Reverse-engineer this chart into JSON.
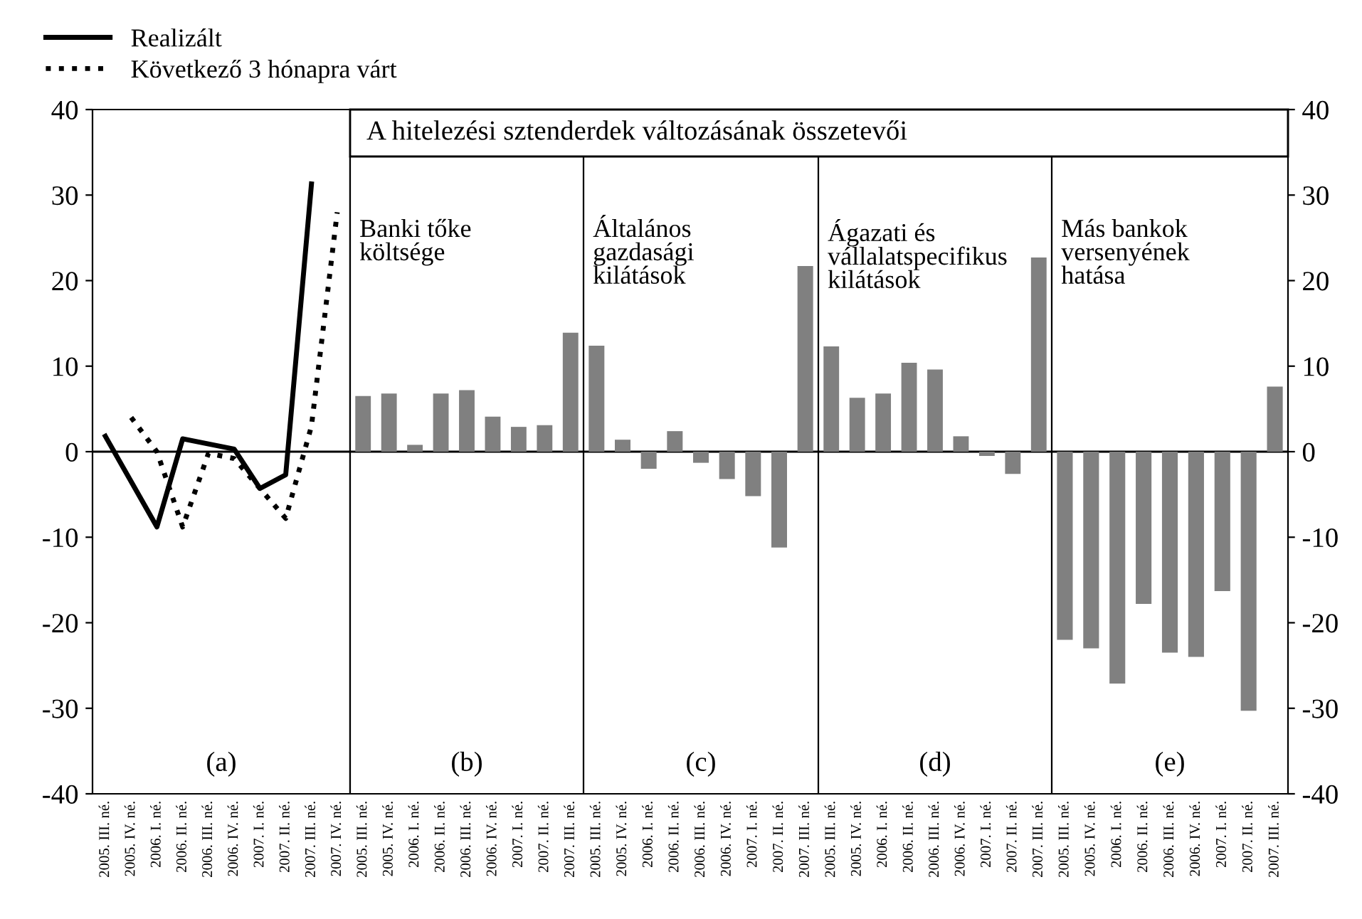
{
  "chart_data": [
    {
      "type": "line",
      "categories": [
        "2005. III. né.",
        "2005. IV. né.",
        "2006. I. né.",
        "2006. II. né.",
        "2006. III. né.",
        "2006. IV. né.",
        "2007. I. né.",
        "2007. II. né.",
        "2007. III. né.",
        "2007. IV. né."
      ],
      "series": [
        {
          "name": "Realizált",
          "color": "#000000",
          "line_style": "solid",
          "values": [
            1.8,
            -3.5,
            -8.8,
            1.5,
            0.9,
            0.3,
            -4.3,
            -2.7,
            31.3,
            null
          ]
        },
        {
          "name": "Következő 3 hónapra várt",
          "color": "#000000",
          "line_style": "dotted",
          "values": [
            null,
            4.0,
            0.0,
            -8.8,
            -0.2,
            -0.8,
            -4.3,
            -7.8,
            3.0,
            28.0
          ]
        }
      ],
      "ylim": [
        -40,
        40
      ],
      "yticks": [
        -40,
        -30,
        -20,
        -10,
        0,
        10,
        20,
        30,
        40
      ],
      "legend": "top",
      "annotations": [
        "(a)"
      ]
    },
    {
      "type": "bar",
      "title": "Banki tőke\nköltsége",
      "categories": [
        "2005. III. né.",
        "2005. IV. né.",
        "2006. I. né.",
        "2006. II. né.",
        "2006. III. né.",
        "2006. IV. né.",
        "2007. I. né.",
        "2007. II. né.",
        "2007. III. né."
      ],
      "series": [
        {
          "color": "#808080",
          "values": [
            6.5,
            6.8,
            0.8,
            6.8,
            7.2,
            4.1,
            2.9,
            3.1,
            13.9
          ]
        }
      ],
      "ylim": [
        -40,
        40
      ],
      "tick_labels": "x",
      "annotations": [
        "A hitelezési sztenderdek változásának összetevői",
        "(b)"
      ]
    },
    {
      "type": "bar",
      "title": "Általános\ngazdasági\nkilátások",
      "categories": [
        "2005. III. né.",
        "2005. IV. né.",
        "2006. I. né.",
        "2006. II. né.",
        "2006. III. né.",
        "2006. IV. né.",
        "2007. I. né.",
        "2007. II. né.",
        "2007. III. né."
      ],
      "series": [
        {
          "color": "#808080",
          "values": [
            12.4,
            1.4,
            -2.0,
            2.4,
            -1.3,
            -3.2,
            -5.2,
            -11.2,
            21.7
          ]
        }
      ],
      "ylim": [
        -40,
        40
      ],
      "tick_labels": "x",
      "annotations": [
        "(c)"
      ]
    },
    {
      "type": "bar",
      "title": "Ágazati és\nvállalatspecifikus\nkilátások",
      "categories": [
        "2005. III. né.",
        "2005. IV. né.",
        "2006. I. né.",
        "2006. II. né.",
        "2006. III. né.",
        "2006. IV. né.",
        "2007. I. né.",
        "2007. II. né.",
        "2007. III. né."
      ],
      "series": [
        {
          "color": "#808080",
          "values": [
            12.3,
            6.3,
            6.8,
            10.4,
            9.6,
            1.8,
            -0.5,
            -2.6,
            22.7
          ]
        }
      ],
      "ylim": [
        -40,
        40
      ],
      "tick_labels": "x",
      "annotations": [
        "(d)"
      ]
    },
    {
      "type": "bar",
      "title": "Más bankok\nversenyének\nhatása",
      "categories": [
        "2005. III. né.",
        "2005. IV. né.",
        "2006. I. né.",
        "2006. II. né.",
        "2006. III. né.",
        "2006. IV. né.",
        "2007. I. né.",
        "2007. II. né.",
        "2007. III. né."
      ],
      "series": [
        {
          "color": "#808080",
          "axis": "y2",
          "values": [
            -22.0,
            -23.0,
            -27.1,
            -17.8,
            -23.5,
            -24.0,
            -16.3,
            -30.3,
            7.6
          ]
        }
      ],
      "y2lim": [
        -40,
        40
      ],
      "y2ticks": [
        -40,
        -30,
        -20,
        -10,
        0,
        10,
        20,
        30,
        40
      ],
      "annotations": [
        "(e)"
      ]
    }
  ]
}
